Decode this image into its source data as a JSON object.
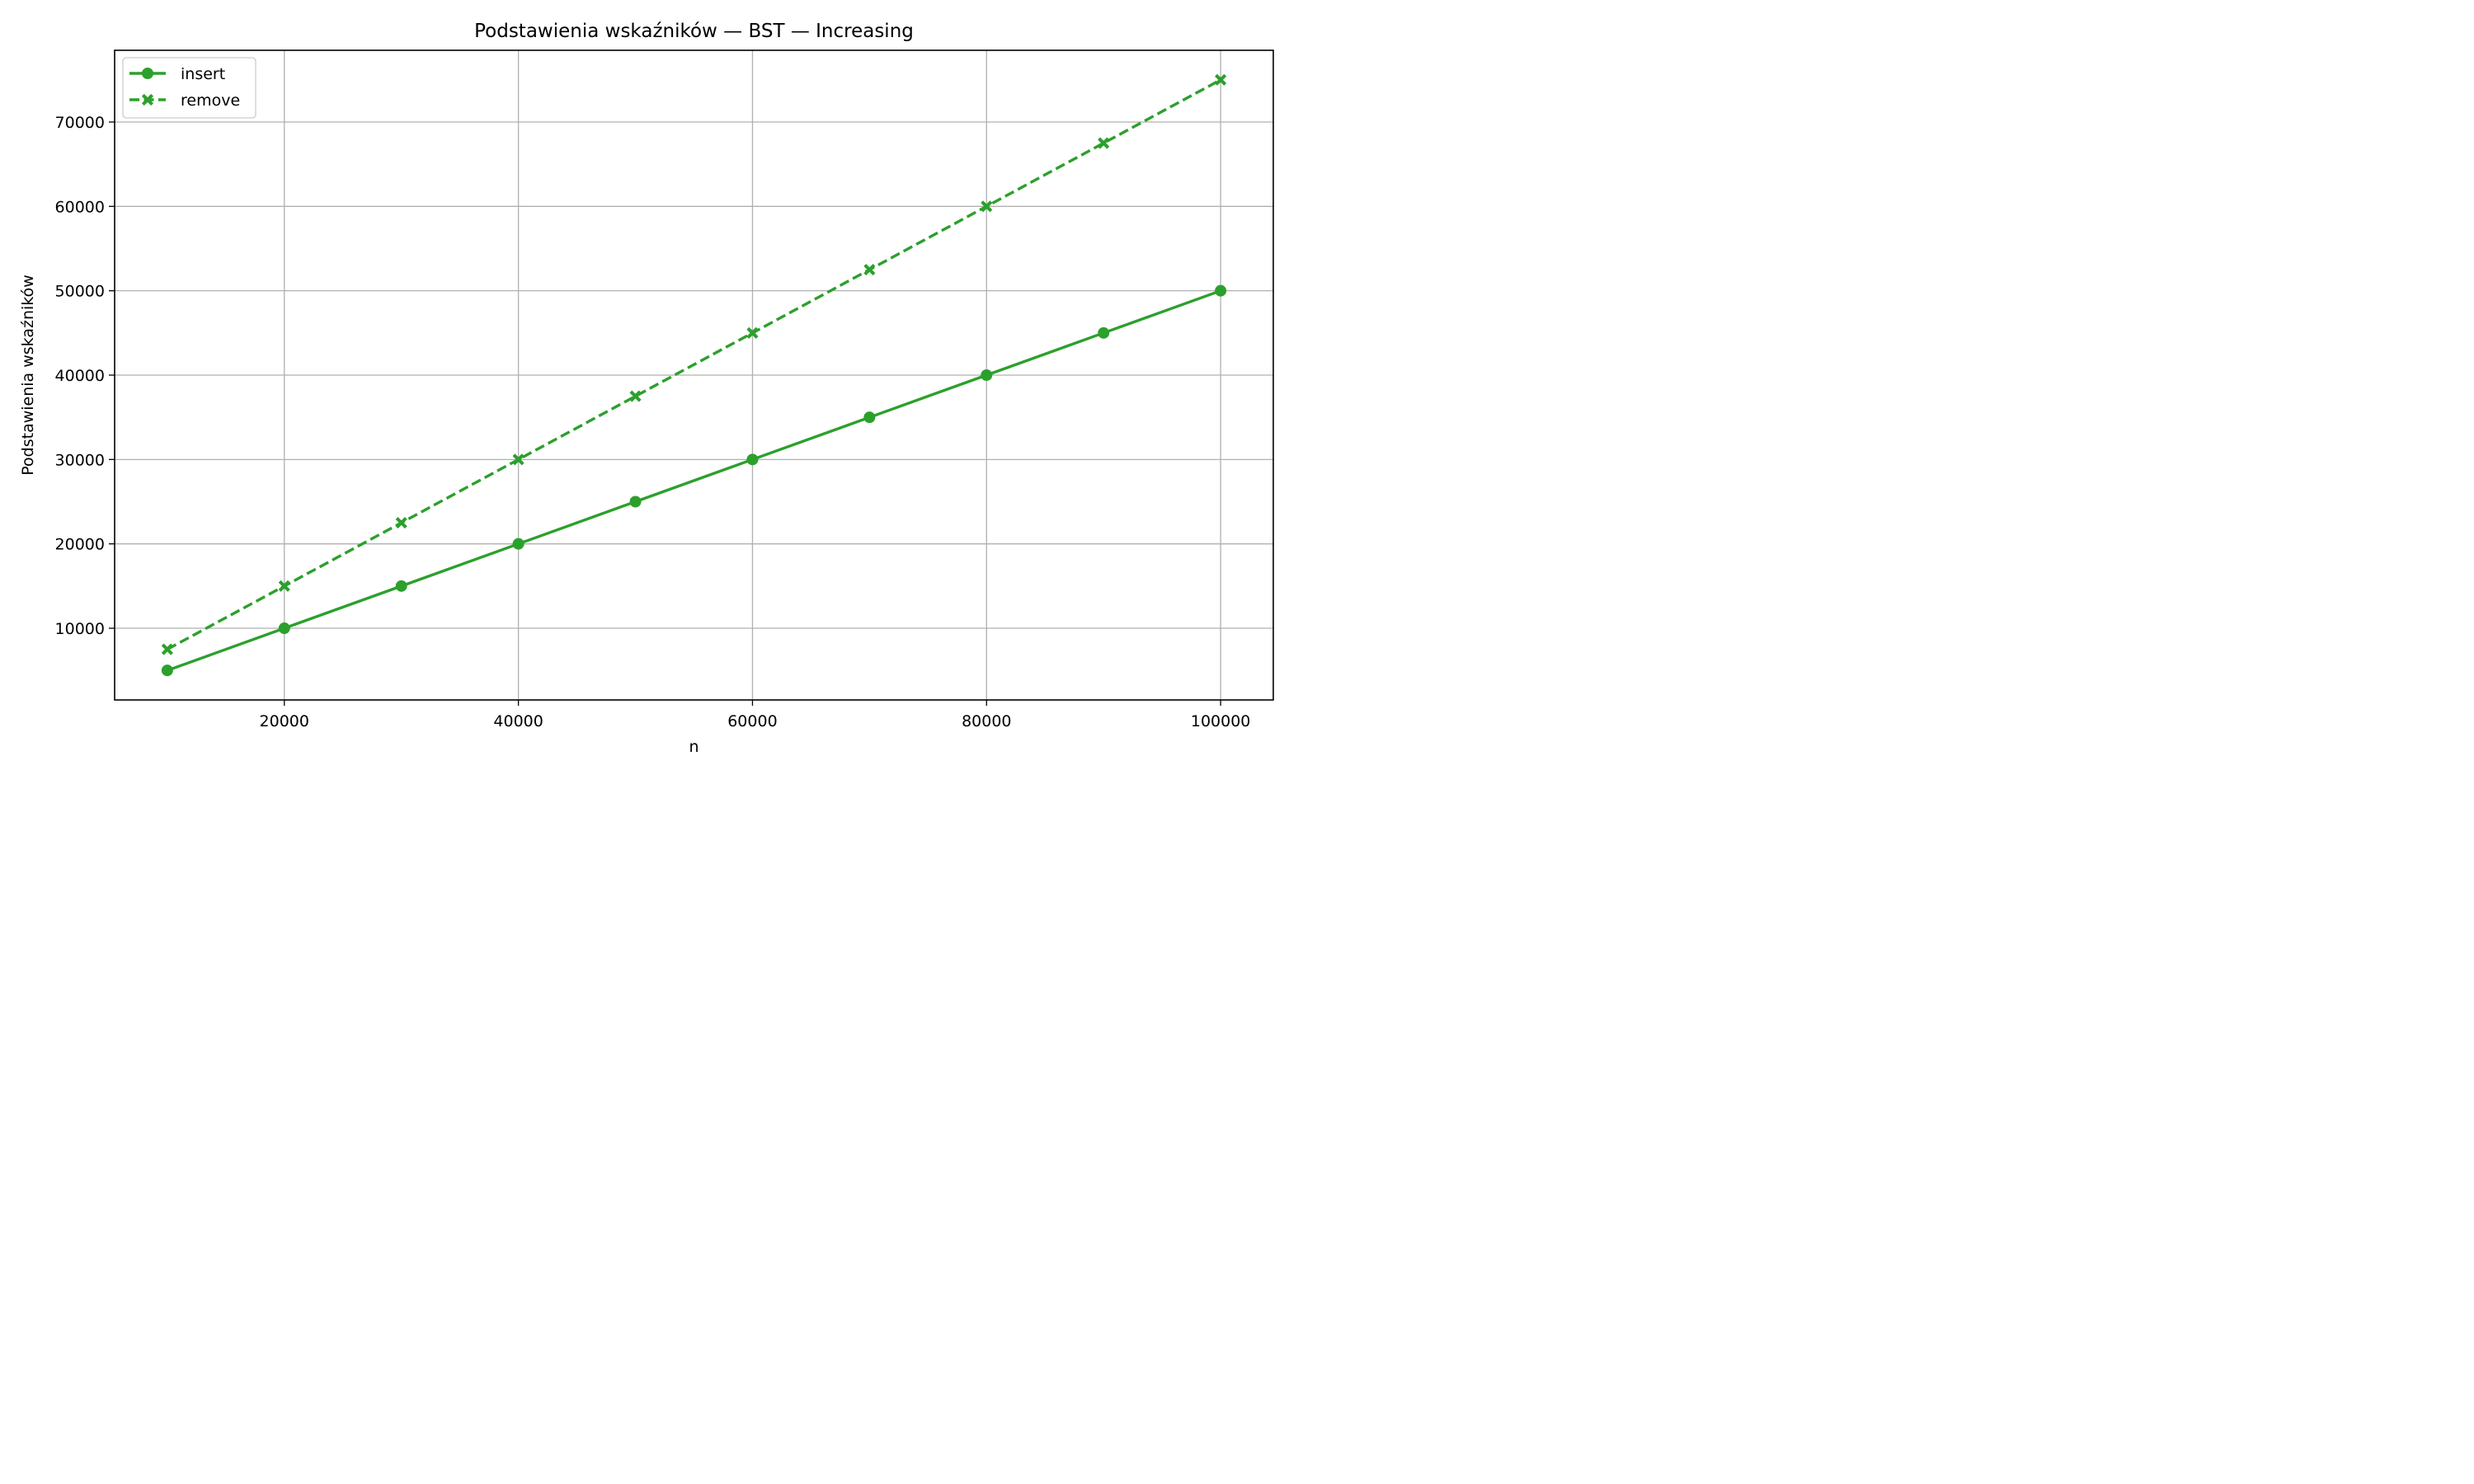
{
  "chart_data": {
    "type": "line",
    "title": "Podstawienia wskaźników — BST — Increasing",
    "xlabel": "n",
    "ylabel": "Podstawienia wskaźników",
    "x": [
      10000,
      20000,
      30000,
      40000,
      50000,
      60000,
      70000,
      80000,
      90000,
      100000
    ],
    "xlim": [
      5500,
      104500
    ],
    "ylim": [
      1500,
      78500
    ],
    "xticks": [
      20000,
      40000,
      60000,
      80000,
      100000
    ],
    "yticks": [
      10000,
      20000,
      30000,
      40000,
      50000,
      60000,
      70000
    ],
    "xtick_labels": [
      "20000",
      "40000",
      "60000",
      "80000",
      "100000"
    ],
    "ytick_labels": [
      "10000",
      "20000",
      "30000",
      "40000",
      "50000",
      "60000",
      "70000"
    ],
    "grid": true,
    "legend_position": "top-left",
    "series": [
      {
        "name": "insert",
        "values": [
          5000,
          10000,
          15000,
          20000,
          25000,
          30000,
          35000,
          40000,
          45000,
          50000
        ],
        "color": "#2ca02c",
        "line_style": "solid",
        "marker": "circle"
      },
      {
        "name": "remove",
        "values": [
          7500,
          15000,
          22500,
          30000,
          37500,
          45000,
          52500,
          60000,
          67500,
          75000
        ],
        "color": "#2ca02c",
        "line_style": "dashed",
        "marker": "x-filled"
      }
    ]
  }
}
